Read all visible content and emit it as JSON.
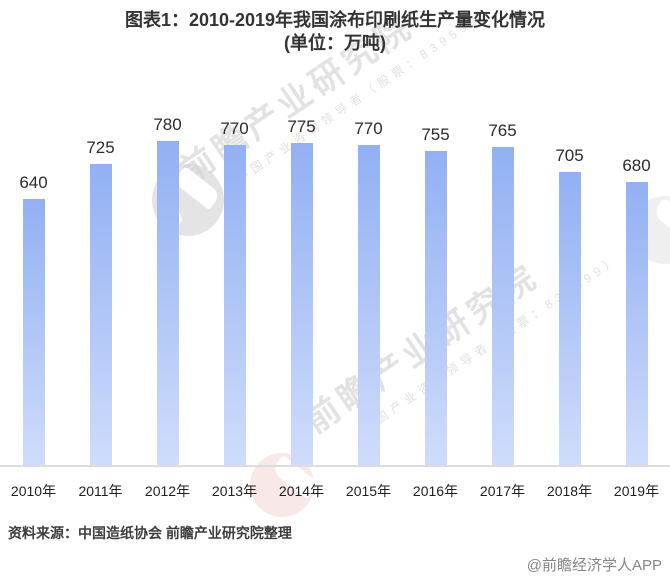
{
  "title": {
    "line1": "图表1：2010-2019年我国涂布印刷纸生产量变化情况",
    "line2": "(单位：万吨)"
  },
  "chart_data": {
    "type": "bar",
    "title": "2010-2019年我国涂布印刷纸生产量变化情况",
    "unit_label": "单位：万吨",
    "categories": [
      "2010年",
      "2011年",
      "2012年",
      "2013年",
      "2014年",
      "2015年",
      "2016年",
      "2017年",
      "2018年",
      "2019年"
    ],
    "values": [
      640,
      725,
      780,
      770,
      775,
      770,
      755,
      765,
      705,
      680
    ],
    "ylim": [
      0,
      905
    ],
    "grid": false,
    "legend": "none",
    "value_labels_shown": true,
    "bar_color_top": "#92b0f3",
    "bar_color_bottom": "#cfdcfb"
  },
  "watermark": {
    "brand_text": "前瞻产业研究院",
    "brand_subtext": "中国产业咨询领导者（股票：839599）",
    "bottom_right": "@前瞻经济学人APP"
  },
  "source": {
    "text": "资料来源：中国造纸协会 前瞻产业研究院整理"
  },
  "colors": {
    "title": "#333333",
    "value_label": "#2b2b2b",
    "x_label": "#1f1f1f",
    "axis_line": "#dcdcdc",
    "source_text": "#3d3d3d",
    "footer_text": "#858585",
    "watermark": "#bababa"
  }
}
